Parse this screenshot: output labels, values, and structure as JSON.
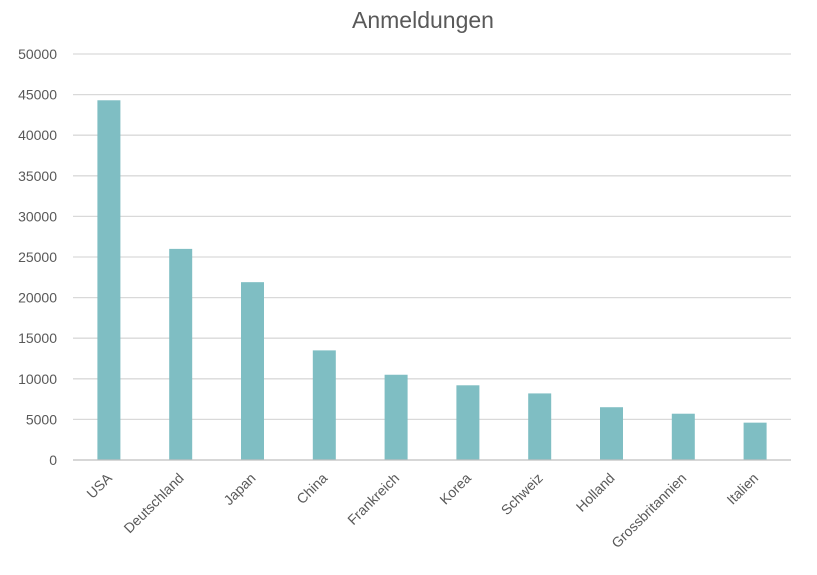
{
  "chart_data": {
    "type": "bar",
    "title": "Anmeldungen",
    "xlabel": "",
    "ylabel": "",
    "categories": [
      "USA",
      "Deutschland",
      "Japan",
      "China",
      "Frankreich",
      "Korea",
      "Schweiz",
      "Holland",
      "Grossbritannien",
      "Italien"
    ],
    "values": [
      44300,
      26000,
      21900,
      13500,
      10500,
      9200,
      8200,
      6500,
      5700,
      4600
    ],
    "ylim": [
      0,
      50000
    ],
    "yticks": [
      "0",
      "5000",
      "10000",
      "15000",
      "20000",
      "25000",
      "30000",
      "35000",
      "40000",
      "45000",
      "50000"
    ],
    "grid": true,
    "legend": "none",
    "bar_color": "#7fbec3"
  }
}
